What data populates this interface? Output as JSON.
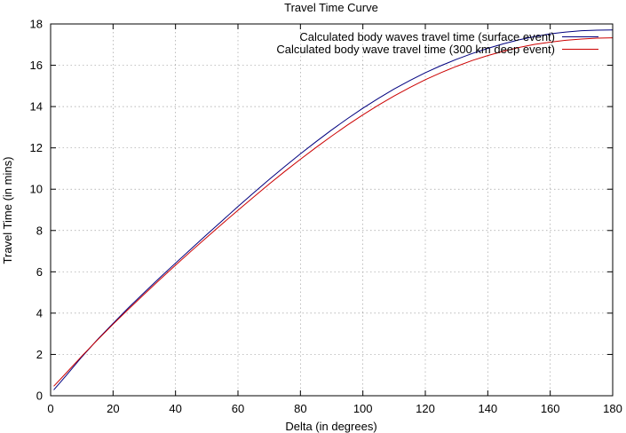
{
  "chart_data": {
    "type": "line",
    "title": "Travel Time Curve",
    "xlabel": "Delta (in degrees)",
    "ylabel": "Travel Time (in mins)",
    "xlim": [
      0,
      180
    ],
    "ylim": [
      0,
      18
    ],
    "xticks": [
      0,
      20,
      40,
      60,
      80,
      100,
      120,
      140,
      160,
      180
    ],
    "yticks": [
      0,
      2,
      4,
      6,
      8,
      10,
      12,
      14,
      16,
      18
    ],
    "grid": true,
    "legend_position": "top-right",
    "x": [
      1,
      5,
      10,
      15,
      20,
      25,
      30,
      35,
      40,
      45,
      50,
      55,
      60,
      65,
      70,
      75,
      80,
      85,
      90,
      95,
      100,
      105,
      110,
      115,
      120,
      125,
      130,
      135,
      140,
      145,
      150,
      155,
      160,
      165,
      170,
      175,
      180
    ],
    "series": [
      {
        "name": "Calculated body waves travel time (surface event)",
        "color": "#00007f",
        "values": [
          0.28,
          0.98,
          1.88,
          2.72,
          3.5,
          4.27,
          5.0,
          5.72,
          6.42,
          7.11,
          7.8,
          8.48,
          9.16,
          9.82,
          10.47,
          11.1,
          11.71,
          12.3,
          12.87,
          13.41,
          13.92,
          14.4,
          14.85,
          15.26,
          15.64,
          15.98,
          16.29,
          16.57,
          16.82,
          17.04,
          17.23,
          17.39,
          17.52,
          17.61,
          17.67,
          17.7,
          17.71
        ]
      },
      {
        "name": "Calculated body wave travel time (300 km deep event)",
        "color": "#cc0000",
        "values": [
          0.46,
          1.1,
          1.92,
          2.7,
          3.46,
          4.2,
          4.92,
          5.63,
          6.32,
          7.0,
          7.67,
          8.33,
          8.98,
          9.62,
          10.25,
          10.86,
          11.45,
          12.02,
          12.57,
          13.1,
          13.6,
          14.07,
          14.51,
          14.92,
          15.3,
          15.64,
          15.95,
          16.23,
          16.47,
          16.68,
          16.86,
          17.01,
          17.12,
          17.21,
          17.27,
          17.31,
          17.33
        ]
      }
    ]
  }
}
